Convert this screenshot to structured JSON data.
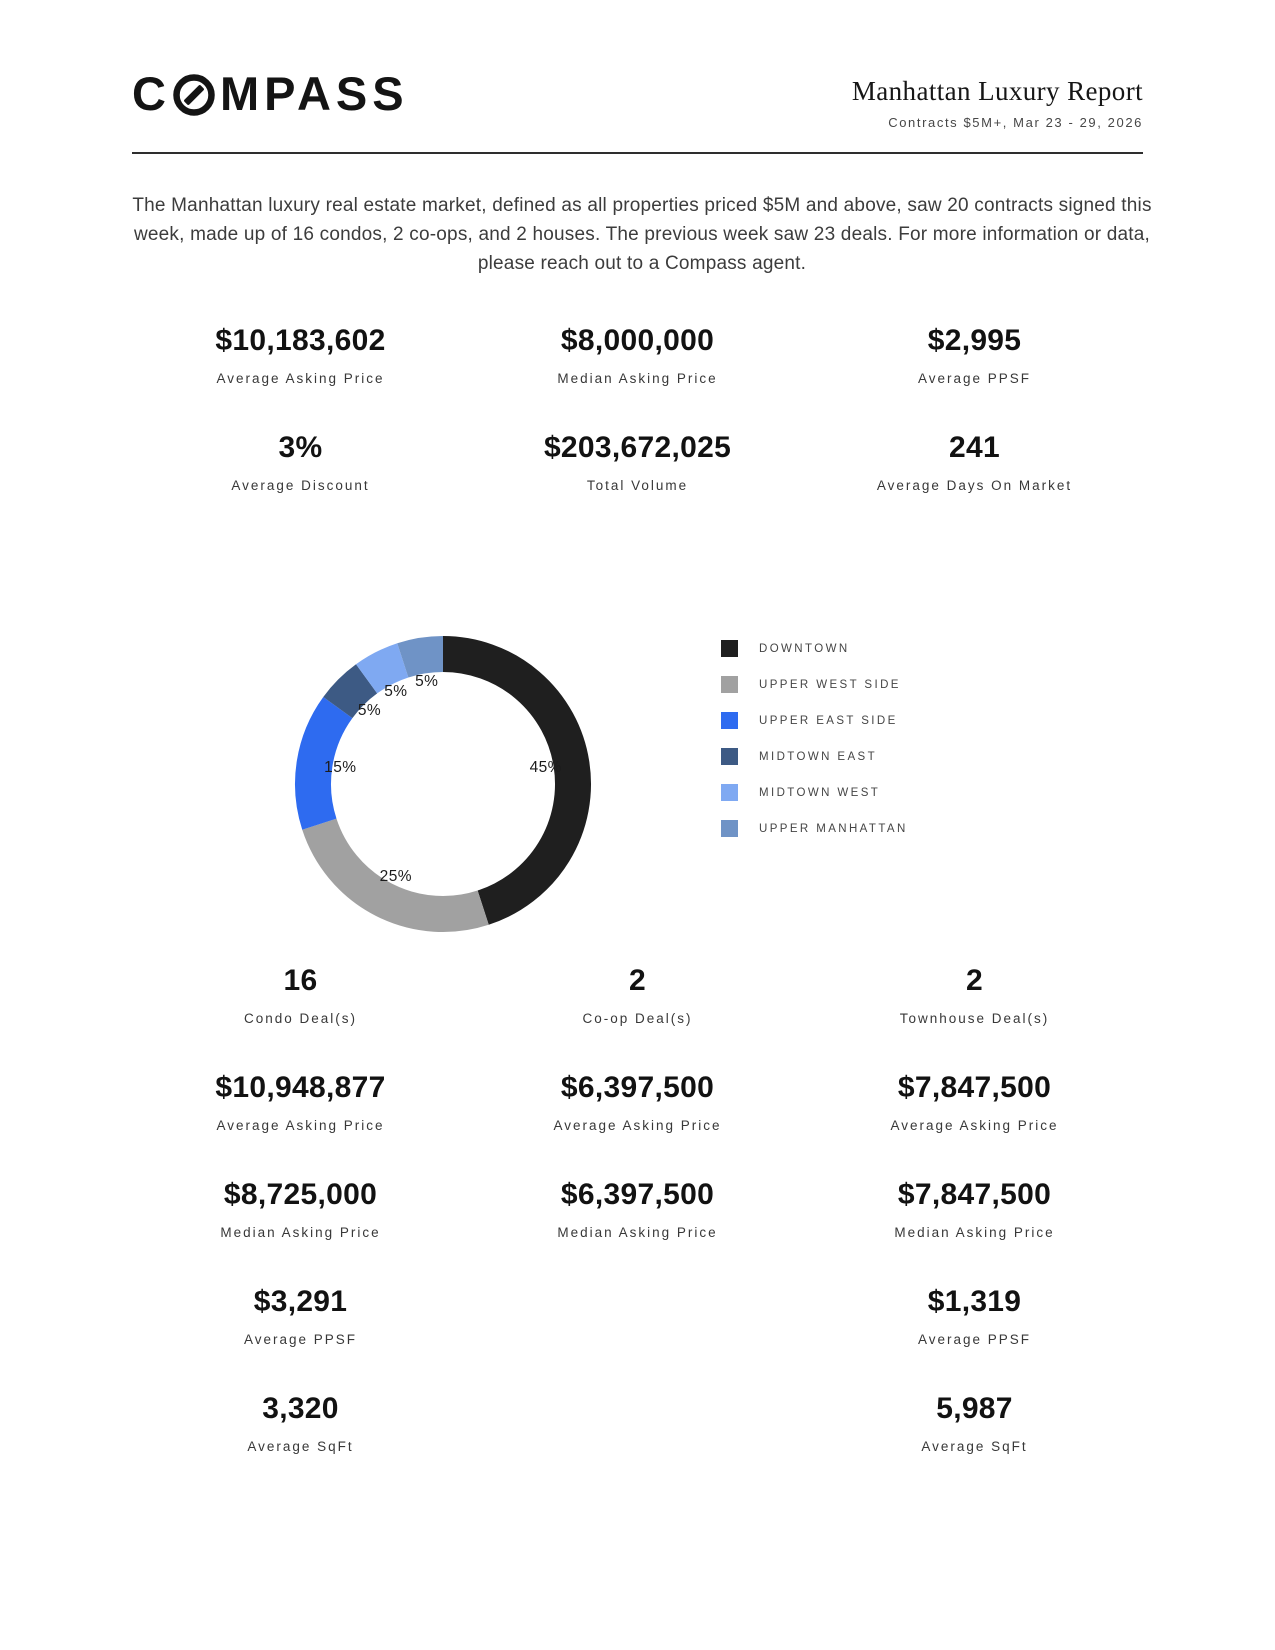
{
  "header": {
    "logo": {
      "text": "COMPASS",
      "prefix": "C",
      "suffix": "MPASS"
    },
    "title": "Manhattan Luxury Report",
    "subtitle": "Contracts $5M+, Mar 23 - 29, 2026"
  },
  "intro": "The Manhattan luxury real estate market, defined as all properties priced $5M and above, saw 20 contracts signed this week, made up of 16 condos, 2 co-ops, and 2 houses. The previous week saw 23 deals. For more information or data, please reach out to a Compass agent.",
  "summary_stats": [
    {
      "value": "$10,183,602",
      "label": "Average Asking Price"
    },
    {
      "value": "$8,000,000",
      "label": "Median Asking Price"
    },
    {
      "value": "$2,995",
      "label": "Average PPSF"
    },
    {
      "value": "3%",
      "label": "Average Discount"
    },
    {
      "value": "$203,672,025",
      "label": "Total Volume"
    },
    {
      "value": "241",
      "label": "Average Days On Market"
    }
  ],
  "chart_data": {
    "type": "pie",
    "donut": true,
    "start_angle_deg": 0,
    "direction": "clockwise",
    "label_format": "percent",
    "legend_position": "right",
    "segments": [
      {
        "label": "DOWNTOWN",
        "value": 45,
        "color": "#1f1f1f"
      },
      {
        "label": "UPPER WEST SIDE",
        "value": 25,
        "color": "#a1a1a1"
      },
      {
        "label": "UPPER EAST SIDE",
        "value": 15,
        "color": "#2e6bf0"
      },
      {
        "label": "MIDTOWN EAST",
        "value": 5,
        "color": "#3d5a84"
      },
      {
        "label": "MIDTOWN WEST",
        "value": 5,
        "color": "#7fa9f2"
      },
      {
        "label": "UPPER MANHATTAN",
        "value": 5,
        "color": "#6f93c6"
      }
    ]
  },
  "property_types": {
    "columns": [
      {
        "name": "Condo",
        "stats": [
          {
            "value": "16",
            "label": "Condo Deal(s)"
          },
          {
            "value": "$10,948,877",
            "label": "Average Asking Price"
          },
          {
            "value": "$8,725,000",
            "label": "Median Asking Price"
          },
          {
            "value": "$3,291",
            "label": "Average PPSF"
          },
          {
            "value": "3,320",
            "label": "Average SqFt"
          }
        ]
      },
      {
        "name": "Co-op",
        "stats": [
          {
            "value": "2",
            "label": "Co-op Deal(s)"
          },
          {
            "value": "$6,397,500",
            "label": "Average Asking Price"
          },
          {
            "value": "$6,397,500",
            "label": "Median Asking Price"
          }
        ]
      },
      {
        "name": "Townhouse",
        "stats": [
          {
            "value": "2",
            "label": "Townhouse Deal(s)"
          },
          {
            "value": "$7,847,500",
            "label": "Average Asking Price"
          },
          {
            "value": "$7,847,500",
            "label": "Median Asking Price"
          },
          {
            "value": "$1,319",
            "label": "Average PPSF"
          },
          {
            "value": "5,987",
            "label": "Average SqFt"
          }
        ]
      }
    ]
  }
}
